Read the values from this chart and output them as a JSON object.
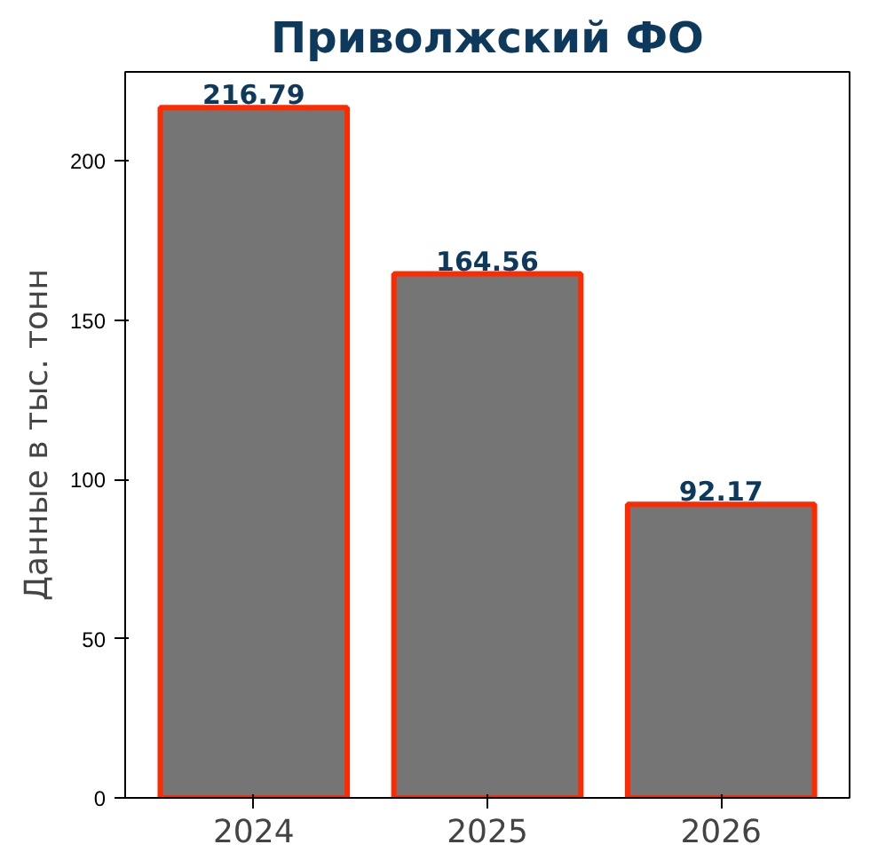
{
  "chart_data": {
    "type": "bar",
    "title": "Приволжский ФО",
    "ylabel": "Данные в тыс. тонн",
    "categories": [
      "2024",
      "2025",
      "2026"
    ],
    "values": [
      216.79,
      164.56,
      92.17
    ],
    "color": "#757575",
    "ylim": [
      0,
      228
    ],
    "yticks": [
      0,
      50,
      100,
      150,
      200
    ],
    "grid": false,
    "data_labels": true
  }
}
